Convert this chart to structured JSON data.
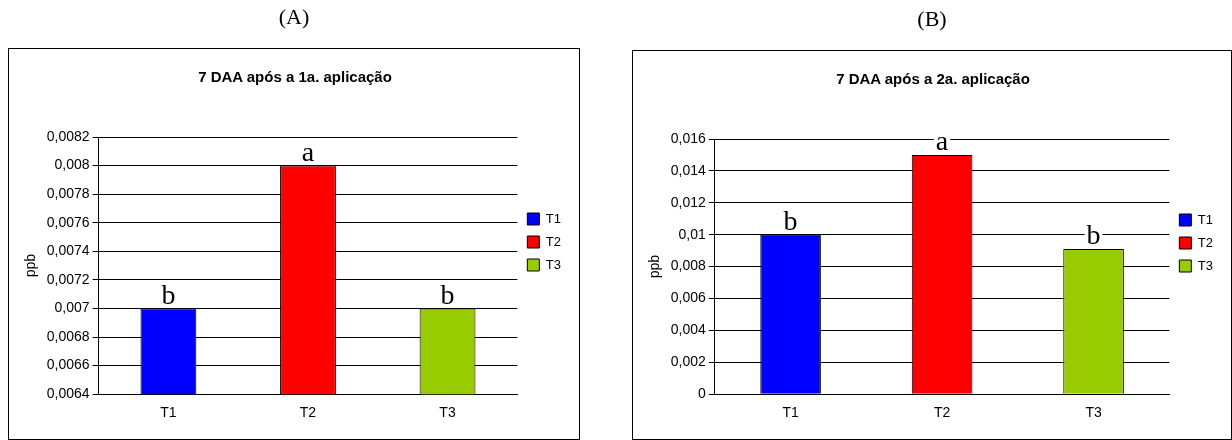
{
  "chart_data": [
    {
      "type": "bar",
      "title": "7 DAA após a 1a. aplicação",
      "ylabel": "ppb",
      "categories": [
        "T1",
        "T2",
        "T3"
      ],
      "series": [
        {
          "name": "T1",
          "color": "#0000ff",
          "values": [
            0.007,
            null,
            null
          ]
        },
        {
          "name": "T2",
          "color": "#ff0000",
          "values": [
            null,
            0.008,
            null
          ]
        },
        {
          "name": "T3",
          "color": "#99cc00",
          "values": [
            null,
            null,
            0.007
          ]
        }
      ],
      "ylim": [
        0.0064,
        0.0082
      ],
      "yticks": [
        {
          "value": 0.0064,
          "label": "0,0064"
        },
        {
          "value": 0.0066,
          "label": "0,0066"
        },
        {
          "value": 0.0068,
          "label": "0,0068"
        },
        {
          "value": 0.007,
          "label": "0,007"
        },
        {
          "value": 0.0072,
          "label": "0,0072"
        },
        {
          "value": 0.0074,
          "label": "0,0074"
        },
        {
          "value": 0.0076,
          "label": "0,0076"
        },
        {
          "value": 0.0078,
          "label": "0,0078"
        },
        {
          "value": 0.008,
          "label": "0,008"
        },
        {
          "value": 0.0082,
          "label": "0,0082"
        }
      ],
      "grid": "y",
      "legend": "right",
      "annotations": [
        "(A)",
        {
          "text": "b",
          "x": "T1",
          "y": 0.007
        },
        {
          "text": "a",
          "x": "T2",
          "y": 0.008
        },
        {
          "text": "b",
          "x": "T3",
          "y": 0.007
        }
      ]
    },
    {
      "type": "bar",
      "title": "7 DAA após a 2a. aplicação",
      "ylabel": "ppb",
      "categories": [
        "T1",
        "T2",
        "T3"
      ],
      "series": [
        {
          "name": "T1",
          "color": "#0000ff",
          "values": [
            0.01,
            null,
            null
          ]
        },
        {
          "name": "T2",
          "color": "#ff0000",
          "values": [
            null,
            0.015,
            null
          ]
        },
        {
          "name": "T3",
          "color": "#99cc00",
          "values": [
            null,
            null,
            0.0091
          ]
        }
      ],
      "ylim": [
        0,
        0.016
      ],
      "yticks": [
        0,
        {
          "value": 0.002,
          "label": "0,002"
        },
        {
          "value": 0.004,
          "label": "0,004"
        },
        {
          "value": 0.006,
          "label": "0,006"
        },
        {
          "value": 0.008,
          "label": "0,008"
        },
        {
          "value": 0.01,
          "label": "0,01"
        },
        {
          "value": 0.012,
          "label": "0,012"
        },
        {
          "value": 0.014,
          "label": "0,014"
        },
        {
          "value": 0.016,
          "label": "0,016"
        }
      ],
      "grid": "y",
      "legend": "right",
      "annotations": [
        "(B)",
        {
          "text": "b",
          "x": "T1",
          "y": 0.01
        },
        {
          "text": "a",
          "x": "T2",
          "y": 0.015
        },
        {
          "text": "b",
          "x": "T3",
          "y": 0.0091
        }
      ]
    }
  ]
}
